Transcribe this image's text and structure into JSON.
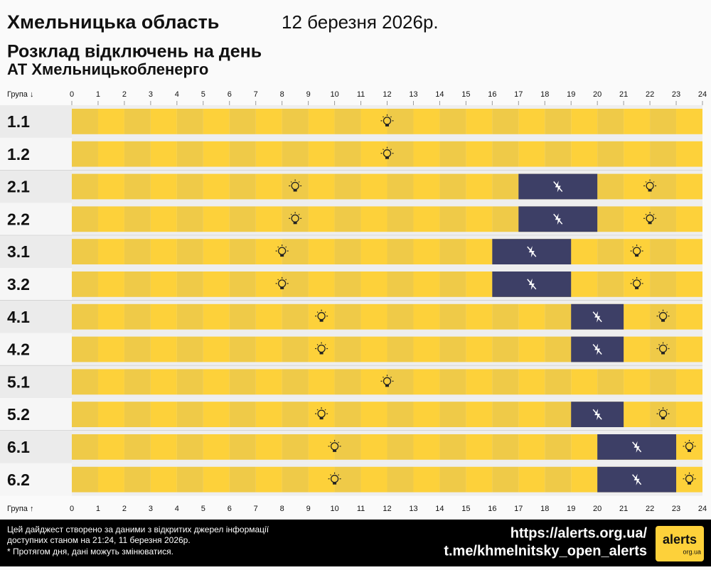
{
  "header": {
    "title": "Хмельницька область",
    "date": "12 березня 2026р.",
    "subtitle": "Розклад відключень на день",
    "company": "АТ Хмельницькобленерго"
  },
  "chart_data": {
    "type": "timeline",
    "axis_label_top": "Група ↓",
    "axis_label_bottom": "Група ↑",
    "xlim": [
      0,
      24
    ],
    "xticks": [
      0,
      1,
      2,
      3,
      4,
      5,
      6,
      7,
      8,
      9,
      10,
      11,
      12,
      13,
      14,
      15,
      16,
      17,
      18,
      19,
      20,
      21,
      22,
      23,
      24
    ],
    "categories": [
      "1.1",
      "1.2",
      "2.1",
      "2.2",
      "3.1",
      "3.2",
      "4.1",
      "4.2",
      "5.1",
      "5.2",
      "6.1",
      "6.2"
    ],
    "on_color": "#fdd13a",
    "off_color": "#3d3f66",
    "outages": [
      [],
      [],
      [
        {
          "start": 17,
          "end": 20
        }
      ],
      [
        {
          "start": 17,
          "end": 20
        }
      ],
      [
        {
          "start": 16,
          "end": 19
        }
      ],
      [
        {
          "start": 16,
          "end": 19
        }
      ],
      [
        {
          "start": 19,
          "end": 21
        }
      ],
      [
        {
          "start": 19,
          "end": 21
        }
      ],
      [],
      [
        {
          "start": 19,
          "end": 21
        }
      ],
      [
        {
          "start": 20,
          "end": 23
        }
      ],
      [
        {
          "start": 20,
          "end": 23
        }
      ]
    ]
  },
  "footer": {
    "note": [
      "Цей дайджест створено за даними з відкритих джерел інформації",
      "доступних станом на 21:24, 11 березня 2026р.",
      "* Протягом дня, дані можуть змінюватися."
    ],
    "links": [
      "https://alerts.org.ua/",
      "t.me/khmelnitsky_open_alerts"
    ],
    "logo": "alerts",
    "logo_sub": "org.ua"
  }
}
